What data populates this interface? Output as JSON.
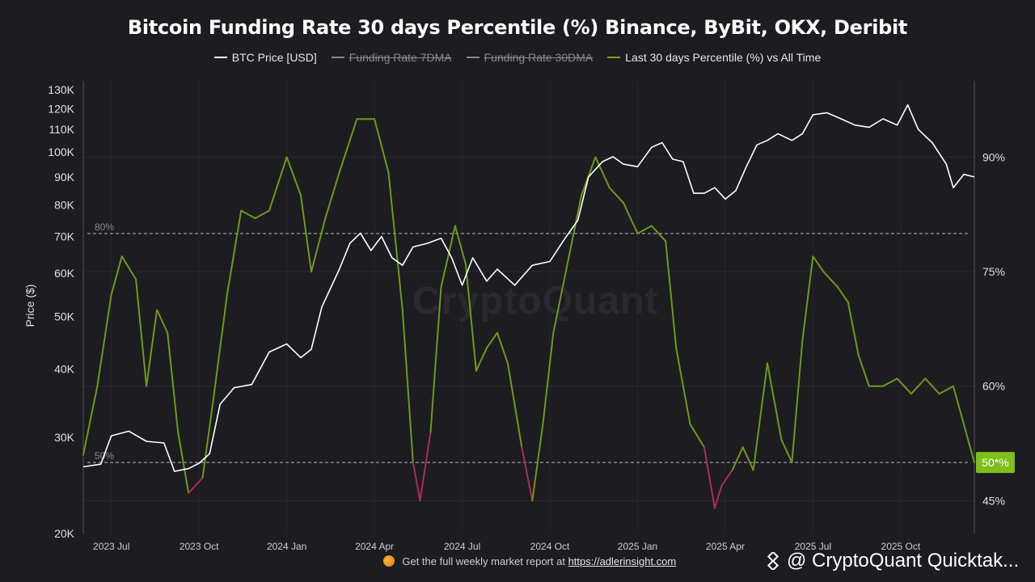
{
  "title": "Bitcoin Funding Rate 30 days Percentile (%) Binance, ByBit, OKX, Deribit",
  "legend": [
    {
      "label": "BTC Price [USD]",
      "color": "#ffffff",
      "active": true
    },
    {
      "label": "Funding Rate 7DMA",
      "color": "#8a8a8a",
      "active": false
    },
    {
      "label": "Funding Rate 30DMA",
      "color": "#8a8a8a",
      "active": false
    },
    {
      "label": "Last 30 days Percentile (%) vs All Time",
      "color": "#7aa61e",
      "active": true
    }
  ],
  "watermark": "CryptoQuant",
  "footer": {
    "text": "Get the full weekly market report at ",
    "link": "https://adlerinsight.com"
  },
  "brand": "@ CryptoQuant Quicktak...",
  "colors": {
    "price": "#ffffff",
    "percentile": "#6e9a1a",
    "percentile_low": "#b02a5a",
    "badge": "#7fbf1a"
  },
  "chart_data": {
    "type": "line",
    "title": "Bitcoin Funding Rate 30 days Percentile (%) Binance, ByBit, OKX, Deribit",
    "x_range": [
      2023.42,
      2025.96
    ],
    "x_ticks": [
      {
        "label": "2023 Jul",
        "t": 2023.5
      },
      {
        "label": "2023 Oct",
        "t": 2023.75
      },
      {
        "label": "2024 Jan",
        "t": 2024.0
      },
      {
        "label": "2024 Apr",
        "t": 2024.25
      },
      {
        "label": "2024 Jul",
        "t": 2024.5
      },
      {
        "label": "2024 Oct",
        "t": 2024.75
      },
      {
        "label": "2025 Jan",
        "t": 2025.0
      },
      {
        "label": "2025 Apr",
        "t": 2025.25
      },
      {
        "label": "2025 Jul",
        "t": 2025.5
      },
      {
        "label": "2025 Oct",
        "t": 2025.75
      }
    ],
    "y_left": {
      "label": "Price ($)",
      "scale": "log",
      "ylim": [
        20000,
        135000
      ],
      "ticks": [
        {
          "label": "130K",
          "v": 130000
        },
        {
          "label": "120K",
          "v": 120000
        },
        {
          "label": "110K",
          "v": 110000
        },
        {
          "label": "100K",
          "v": 100000
        },
        {
          "label": "90K",
          "v": 90000
        },
        {
          "label": "80K",
          "v": 80000
        },
        {
          "label": "70K",
          "v": 70000
        },
        {
          "label": "60K",
          "v": 60000
        },
        {
          "label": "50K",
          "v": 50000
        },
        {
          "label": "40K",
          "v": 40000
        },
        {
          "label": "30K",
          "v": 30000
        },
        {
          "label": "20K",
          "v": 20000
        }
      ]
    },
    "y_right": {
      "scale": "linear",
      "ylim": [
        40.7,
        100
      ],
      "ticks": [
        {
          "label": "90%",
          "v": 90
        },
        {
          "label": "75%",
          "v": 75
        },
        {
          "label": "60%",
          "v": 60
        },
        {
          "label": "45%",
          "v": 45
        }
      ]
    },
    "reference_lines": [
      {
        "label": "80%",
        "v": 80
      },
      {
        "label": "50%",
        "v": 50
      }
    ],
    "last_value_badge": "50*%",
    "series": [
      {
        "name": "BTC Price [USD]",
        "axis": "left",
        "points": [
          [
            2023.42,
            26500
          ],
          [
            2023.47,
            26800
          ],
          [
            2023.5,
            30200
          ],
          [
            2023.55,
            30800
          ],
          [
            2023.6,
            29500
          ],
          [
            2023.65,
            29300
          ],
          [
            2023.68,
            26000
          ],
          [
            2023.72,
            26300
          ],
          [
            2023.75,
            26900
          ],
          [
            2023.78,
            28000
          ],
          [
            2023.81,
            34500
          ],
          [
            2023.85,
            37000
          ],
          [
            2023.9,
            37500
          ],
          [
            2023.95,
            43000
          ],
          [
            2024.0,
            44500
          ],
          [
            2024.04,
            42000
          ],
          [
            2024.07,
            43500
          ],
          [
            2024.1,
            52000
          ],
          [
            2024.15,
            61000
          ],
          [
            2024.18,
            68000
          ],
          [
            2024.21,
            71000
          ],
          [
            2024.24,
            66000
          ],
          [
            2024.27,
            70000
          ],
          [
            2024.3,
            64000
          ],
          [
            2024.33,
            62000
          ],
          [
            2024.36,
            67000
          ],
          [
            2024.4,
            68000
          ],
          [
            2024.44,
            69500
          ],
          [
            2024.47,
            64000
          ],
          [
            2024.5,
            57000
          ],
          [
            2024.53,
            64000
          ],
          [
            2024.57,
            58000
          ],
          [
            2024.6,
            61000
          ],
          [
            2024.65,
            57000
          ],
          [
            2024.7,
            62000
          ],
          [
            2024.75,
            63000
          ],
          [
            2024.79,
            69000
          ],
          [
            2024.83,
            75000
          ],
          [
            2024.86,
            90000
          ],
          [
            2024.9,
            96000
          ],
          [
            2024.93,
            98000
          ],
          [
            2024.96,
            95000
          ],
          [
            2025.0,
            94000
          ],
          [
            2025.04,
            102000
          ],
          [
            2025.07,
            104000
          ],
          [
            2025.1,
            97000
          ],
          [
            2025.13,
            96000
          ],
          [
            2025.16,
            84000
          ],
          [
            2025.19,
            84000
          ],
          [
            2025.22,
            86000
          ],
          [
            2025.25,
            82000
          ],
          [
            2025.28,
            85000
          ],
          [
            2025.31,
            94000
          ],
          [
            2025.34,
            103000
          ],
          [
            2025.37,
            105000
          ],
          [
            2025.4,
            108000
          ],
          [
            2025.44,
            105000
          ],
          [
            2025.47,
            108000
          ],
          [
            2025.5,
            117000
          ],
          [
            2025.54,
            118000
          ],
          [
            2025.58,
            115000
          ],
          [
            2025.62,
            112000
          ],
          [
            2025.66,
            111000
          ],
          [
            2025.7,
            115000
          ],
          [
            2025.74,
            112000
          ],
          [
            2025.77,
            122000
          ],
          [
            2025.8,
            110000
          ],
          [
            2025.84,
            104000
          ],
          [
            2025.88,
            95000
          ],
          [
            2025.9,
            86000
          ],
          [
            2025.93,
            91000
          ],
          [
            2025.96,
            90000
          ]
        ]
      },
      {
        "name": "Last 30 days Percentile (%) vs All Time",
        "axis": "right",
        "points": [
          [
            2023.42,
            51
          ],
          [
            2023.46,
            60
          ],
          [
            2023.5,
            72
          ],
          [
            2023.53,
            77
          ],
          [
            2023.57,
            74
          ],
          [
            2023.6,
            60
          ],
          [
            2023.63,
            70
          ],
          [
            2023.66,
            67
          ],
          [
            2023.69,
            54
          ],
          [
            2023.72,
            46
          ],
          [
            2023.76,
            48
          ],
          [
            2023.79,
            58
          ],
          [
            2023.83,
            72
          ],
          [
            2023.87,
            83
          ],
          [
            2023.91,
            82
          ],
          [
            2023.95,
            83
          ],
          [
            2024.0,
            90
          ],
          [
            2024.04,
            85
          ],
          [
            2024.07,
            75
          ],
          [
            2024.11,
            82
          ],
          [
            2024.15,
            88
          ],
          [
            2024.2,
            95
          ],
          [
            2024.25,
            95
          ],
          [
            2024.29,
            88
          ],
          [
            2024.33,
            70
          ],
          [
            2024.36,
            50
          ],
          [
            2024.38,
            45
          ],
          [
            2024.41,
            54
          ],
          [
            2024.44,
            73
          ],
          [
            2024.48,
            81
          ],
          [
            2024.51,
            76
          ],
          [
            2024.54,
            62
          ],
          [
            2024.57,
            65
          ],
          [
            2024.6,
            67
          ],
          [
            2024.63,
            63
          ],
          [
            2024.67,
            52
          ],
          [
            2024.7,
            45
          ],
          [
            2024.73,
            55
          ],
          [
            2024.76,
            67
          ],
          [
            2024.8,
            76
          ],
          [
            2024.84,
            85
          ],
          [
            2024.88,
            90
          ],
          [
            2024.92,
            86
          ],
          [
            2024.96,
            84
          ],
          [
            2025.0,
            80
          ],
          [
            2025.04,
            81
          ],
          [
            2025.08,
            79
          ],
          [
            2025.11,
            65
          ],
          [
            2025.15,
            55
          ],
          [
            2025.19,
            52
          ],
          [
            2025.22,
            44
          ],
          [
            2025.24,
            47
          ],
          [
            2025.27,
            49
          ],
          [
            2025.3,
            52
          ],
          [
            2025.33,
            49
          ],
          [
            2025.37,
            63
          ],
          [
            2025.41,
            53
          ],
          [
            2025.44,
            50
          ],
          [
            2025.47,
            66
          ],
          [
            2025.5,
            77
          ],
          [
            2025.53,
            75
          ],
          [
            2025.57,
            73
          ],
          [
            2025.6,
            71
          ],
          [
            2025.63,
            64
          ],
          [
            2025.66,
            60
          ],
          [
            2025.7,
            60
          ],
          [
            2025.74,
            61
          ],
          [
            2025.78,
            59
          ],
          [
            2025.82,
            61
          ],
          [
            2025.86,
            59
          ],
          [
            2025.9,
            60
          ],
          [
            2025.93,
            55
          ],
          [
            2025.96,
            50
          ]
        ]
      }
    ]
  }
}
